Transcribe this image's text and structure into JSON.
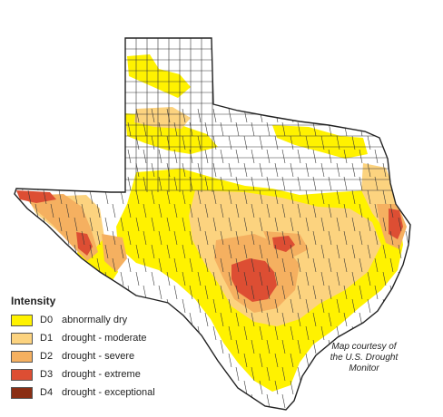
{
  "map": {
    "colors": {
      "D0": "#FFF200",
      "D1": "#FCD37F",
      "D2": "#F5B060",
      "D3": "#DD4E33",
      "D4": "#8A2E14",
      "none": "#FFFFFF",
      "outline": "#222222",
      "county": "#333333"
    }
  },
  "legend": {
    "title": "Intensity",
    "items": [
      {
        "code": "D0",
        "label": "abnormally dry",
        "color": "#FFF200"
      },
      {
        "code": "D1",
        "label": "drought - moderate",
        "color": "#FCD37F"
      },
      {
        "code": "D2",
        "label": "drought - severe",
        "color": "#F5B060"
      },
      {
        "code": "D3",
        "label": "drought - extreme",
        "color": "#DD4E33"
      },
      {
        "code": "D4",
        "label": "drought - exceptional",
        "color": "#8A2E14"
      }
    ]
  },
  "credit": {
    "lines": [
      "Map courtesy of",
      "the U.S. Drought",
      "Monitor"
    ]
  }
}
